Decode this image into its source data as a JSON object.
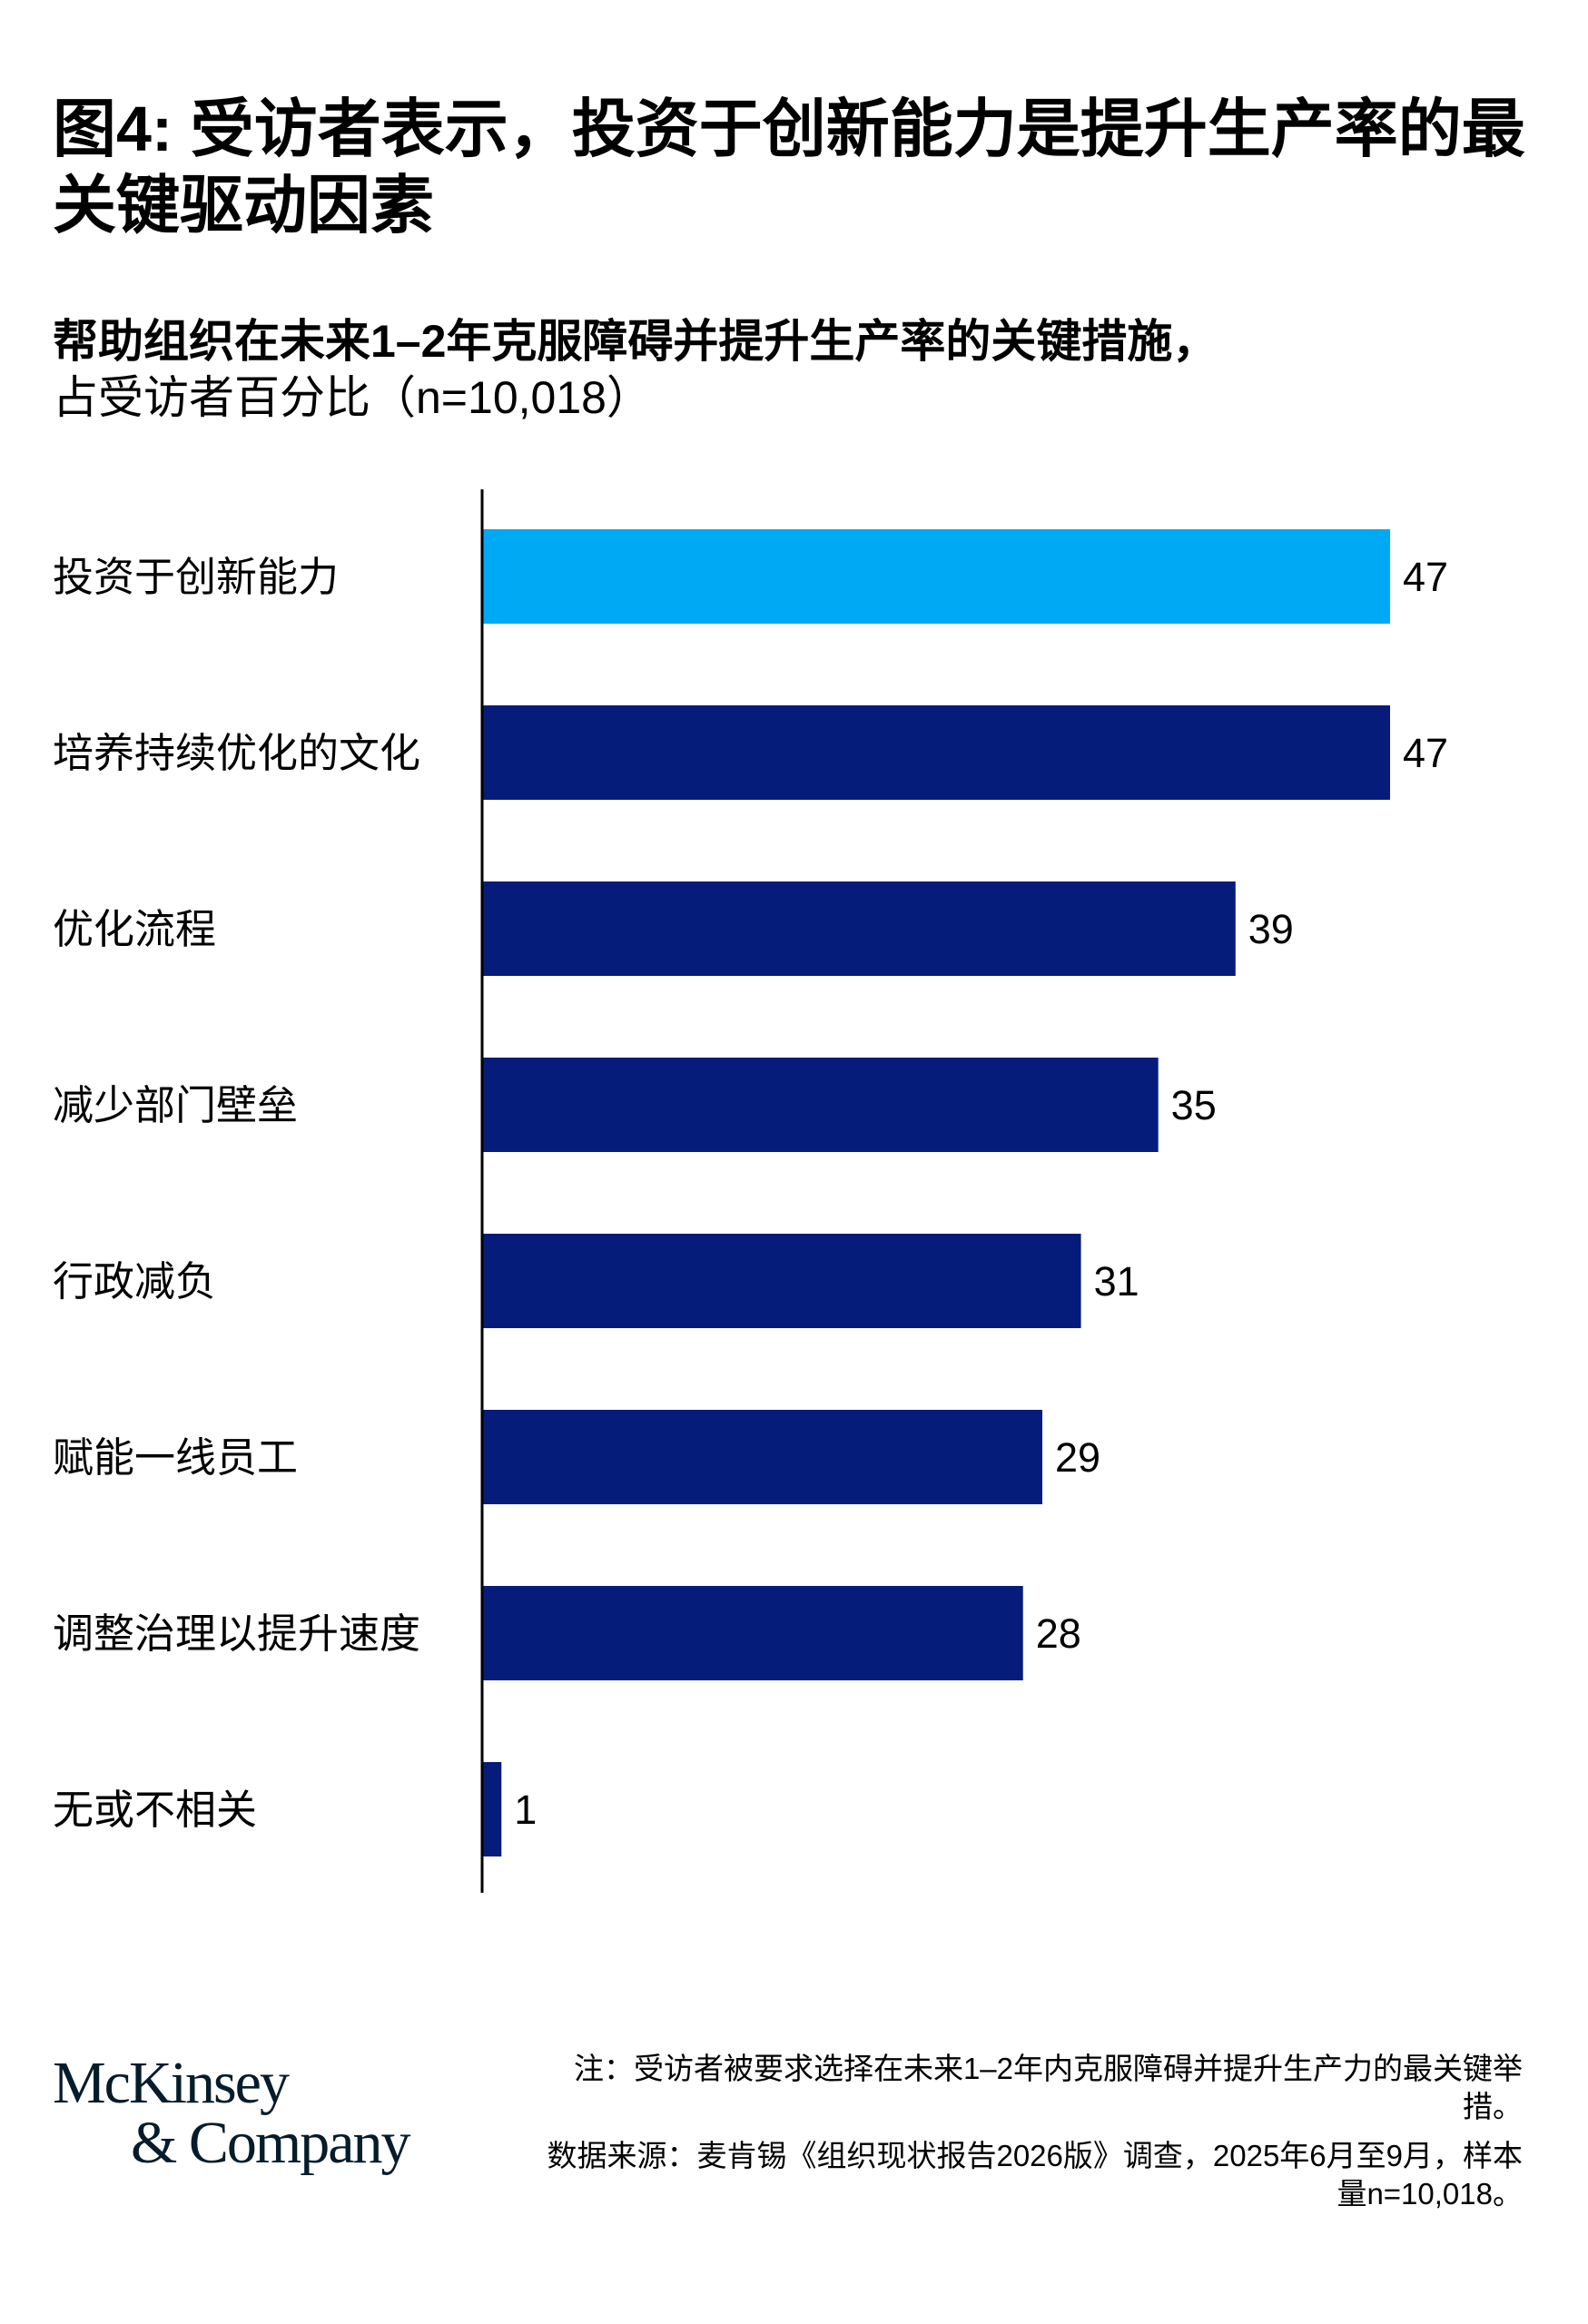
{
  "title": "图4: 受访者表示，投资于创新能力是提升生产率的最关键驱动因素",
  "subtitle_bold": "帮助组织在未来1–2年克服障碍并提升生产率的关键措施，",
  "subtitle_regular": "占受访者百分比（n=10,018）",
  "chart_data": {
    "type": "bar",
    "orientation": "horizontal",
    "title": "帮助组织在未来1–2年克服障碍并提升生产率的关键措施，占受访者百分比（n=10,018）",
    "categories": [
      "投资于创新能力",
      "培养持续优化的文化",
      "优化流程",
      "减少部门壁垒",
      "行政减负",
      "赋能一线员工",
      "调整治理以提升速度",
      "无或不相关"
    ],
    "values": [
      47,
      47,
      39,
      35,
      31,
      29,
      28,
      1
    ],
    "highlight_index": 0,
    "xlim": [
      0,
      47
    ],
    "grid": false,
    "unit": "%"
  },
  "colors": {
    "highlight": "#00A9F4",
    "bar": "#051C7A",
    "axis": "#000000"
  },
  "logo": {
    "line1": "McKinsey",
    "line2": "& Company"
  },
  "notes": {
    "note": "注：受访者被要求选择在未来1–2年内克服障碍并提升生产力的最关键举措。",
    "source": "数据来源：麦肯锡《组织现状报告2026版》调查，2025年6月至9月，样本量n=10,018。"
  }
}
